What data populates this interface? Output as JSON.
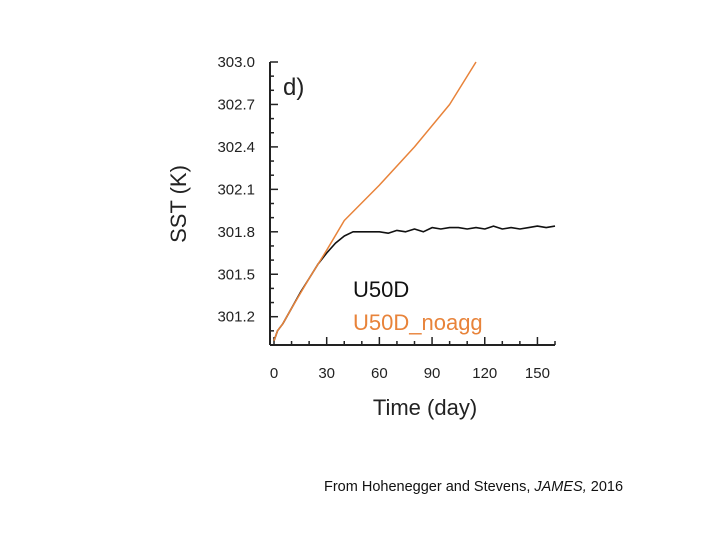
{
  "chart_data": {
    "type": "line",
    "panel_label": "d)",
    "xlabel": "Time (day)",
    "ylabel": "SST (K)",
    "xlim": [
      0,
      160
    ],
    "ylim": [
      301.0,
      303.0
    ],
    "xticks": [
      0,
      30,
      60,
      90,
      120,
      150
    ],
    "yticks": [
      301.2,
      301.5,
      301.8,
      302.1,
      302.4,
      302.7,
      303.0
    ],
    "grid": false,
    "legend_position": "bottom-right inside plot",
    "series": [
      {
        "name": "U50D",
        "color": "#111111",
        "x": [
          0,
          2,
          5,
          10,
          15,
          20,
          25,
          30,
          35,
          40,
          45,
          50,
          55,
          60,
          65,
          70,
          75,
          80,
          85,
          90,
          95,
          100,
          105,
          110,
          115,
          120,
          125,
          130,
          135,
          140,
          145,
          150,
          155,
          160
        ],
        "y": [
          301.03,
          301.1,
          301.15,
          301.26,
          301.37,
          301.47,
          301.57,
          301.65,
          301.72,
          301.77,
          301.8,
          301.8,
          301.8,
          301.8,
          301.79,
          301.81,
          301.8,
          301.82,
          301.8,
          301.83,
          301.82,
          301.83,
          301.83,
          301.82,
          301.83,
          301.82,
          301.84,
          301.82,
          301.83,
          301.82,
          301.83,
          301.84,
          301.83,
          301.84
        ]
      },
      {
        "name": "U50D_noagg",
        "color": "#e8833a",
        "x": [
          0,
          2,
          5,
          10,
          20,
          30,
          40,
          60,
          80,
          100,
          115
        ],
        "y": [
          301.03,
          301.1,
          301.15,
          301.26,
          301.47,
          301.67,
          301.88,
          302.13,
          302.4,
          302.7,
          303.0
        ]
      }
    ]
  },
  "caption": {
    "prefix": "From Hohenegger and Stevens, ",
    "journal": "JAMES,",
    "suffix": " 2016"
  }
}
